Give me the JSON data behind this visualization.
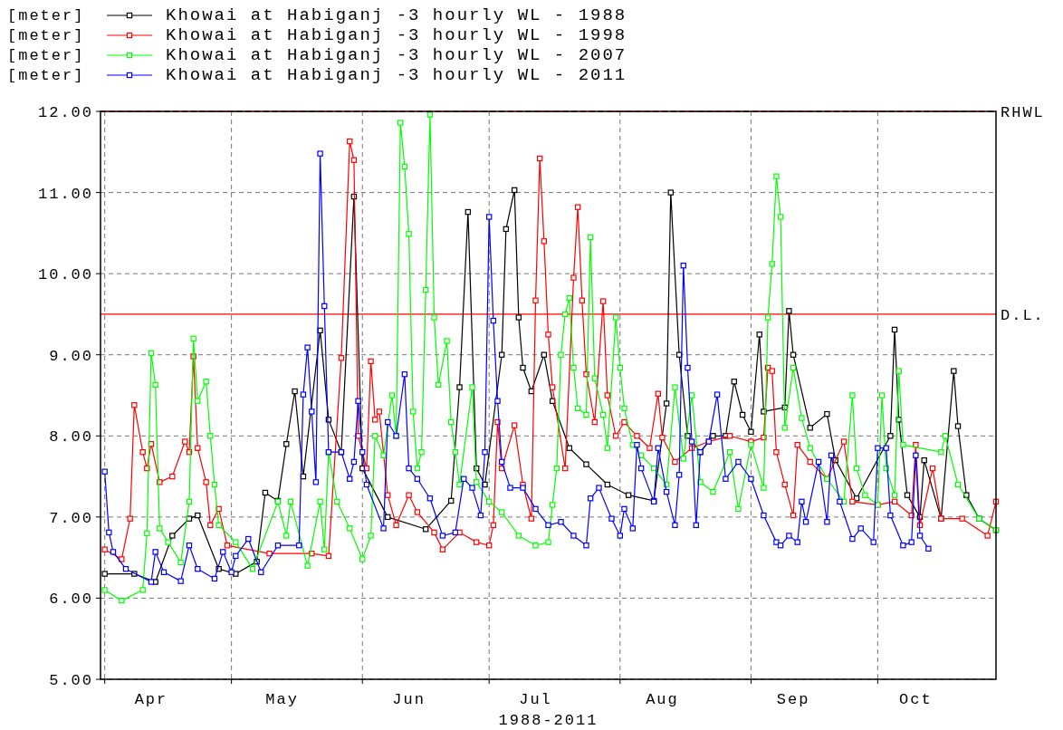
{
  "chart_data": {
    "type": "line",
    "ylabel": "[meter]",
    "xlabel": "1988-2011",
    "xlim": [
      "--03-31",
      "--10-29"
    ],
    "xticks": [
      {
        "value": "--04-01",
        "label": null
      },
      {
        "value": "--04-12",
        "label": "Apr"
      },
      {
        "value": "--05-01",
        "label": null
      },
      {
        "value": "--05-13",
        "label": "May"
      },
      {
        "value": "--06-01",
        "label": null
      },
      {
        "value": "--06-12",
        "label": "Jun"
      },
      {
        "value": "--07-01",
        "label": null
      },
      {
        "value": "--07-12",
        "label": "Jul"
      },
      {
        "value": "--08-01",
        "label": null
      },
      {
        "value": "--08-11",
        "label": "Aug"
      },
      {
        "value": "--09-01",
        "label": null
      },
      {
        "value": "--09-11",
        "label": "Sep"
      },
      {
        "value": "--10-01",
        "label": null
      },
      {
        "value": "--10-10",
        "label": "Oct"
      }
    ],
    "ylim": [
      5,
      12
    ],
    "yticks": [
      {
        "value": 5,
        "label": "5.00"
      },
      {
        "value": 6,
        "label": "6.00"
      },
      {
        "value": 7,
        "label": "7.00"
      },
      {
        "value": 8,
        "label": "8.00"
      },
      {
        "value": 9,
        "label": "9.00"
      },
      {
        "value": 10,
        "label": "10.00"
      },
      {
        "value": 11,
        "label": "11.00"
      },
      {
        "value": 12,
        "label": "12.00"
      }
    ],
    "grid": true,
    "legend": "top left",
    "marker": "square",
    "line_style": "solid",
    "ref_lines": [
      {
        "axis": "y",
        "value": 12,
        "label": "RHWL",
        "color": "#ff0000",
        "line_style": "dashed"
      },
      {
        "axis": "y",
        "value": 9.5,
        "label": "D.L.",
        "color": "#ff0000",
        "line_style": "solid"
      }
    ],
    "series": [
      {
        "name": "Khowai at Habiganj -3 hourly WL - 1988",
        "color": "#000000",
        "x": [
          "--04-01",
          "--04-08",
          "--04-13",
          "--04-17",
          "--04-21",
          "--04-23",
          "--04-28",
          "--05-02",
          "--05-07",
          "--05-09",
          "--05-12",
          "--05-14",
          "--05-16",
          "--05-18",
          "--05-22",
          "--05-24",
          "--05-27",
          "--05-30",
          "--06-01",
          "--06-07",
          "--06-16",
          "--06-22",
          "--06-24",
          "--06-26",
          "--06-28",
          "--06-30",
          "--07-04",
          "--07-05",
          "--07-07",
          "--07-08",
          "--07-09",
          "--07-11",
          "--07-14",
          "--07-16",
          "--07-20",
          "--07-24",
          "--07-29",
          "--08-03",
          "--08-09",
          "--08-12",
          "--08-13",
          "--08-15",
          "--08-17",
          "--08-20",
          "--08-23",
          "--08-26",
          "--08-28",
          "--08-30",
          "--09-01",
          "--09-03",
          "--09-04",
          "--09-09",
          "--09-10",
          "--09-11",
          "--09-15",
          "--09-19",
          "--09-21",
          "--09-26",
          "--10-04",
          "--10-05",
          "--10-06",
          "--10-08",
          "--10-11",
          "--10-12",
          "--10-16",
          "--10-19",
          "--10-20",
          "--10-22",
          "--10-25",
          "--10-29"
        ],
        "values": [
          6.3,
          6.3,
          6.2,
          6.77,
          6.98,
          7.02,
          6.36,
          6.3,
          6.45,
          7.3,
          7.2,
          7.9,
          8.55,
          7.5,
          9.3,
          8.2,
          7.8,
          10.95,
          7.6,
          7.0,
          6.85,
          7.2,
          8.6,
          10.76,
          7.6,
          7.4,
          9.0,
          10.55,
          11.03,
          9.46,
          8.84,
          8.55,
          9.0,
          8.43,
          7.85,
          7.65,
          7.4,
          7.27,
          7.2,
          8.4,
          11.0,
          9.0,
          8.0,
          7.8,
          8.0,
          8.0,
          8.67,
          8.26,
          8.05,
          9.25,
          8.3,
          8.35,
          9.54,
          9.0,
          8.1,
          8.27,
          7.7,
          7.23,
          8.0,
          9.31,
          8.2,
          7.27,
          7.0,
          7.7,
          6.98,
          8.8,
          8.12,
          7.27,
          6.98,
          6.84
        ]
      },
      {
        "name": "Khowai at Habiganj -3 hourly WL - 1998",
        "color": "#ff0000",
        "x": [
          "--04-01",
          "--04-05",
          "--04-07",
          "--04-08",
          "--04-10",
          "--04-11",
          "--04-12",
          "--04-14",
          "--04-17",
          "--04-20",
          "--04-21",
          "--04-22",
          "--04-23",
          "--04-25",
          "--04-26",
          "--04-28",
          "--04-30",
          "--05-10",
          "--05-20",
          "--05-24",
          "--05-27",
          "--05-29",
          "--05-30",
          "--05-31",
          "--06-02",
          "--06-03",
          "--06-04",
          "--06-05",
          "--06-07",
          "--06-09",
          "--06-12",
          "--06-14",
          "--06-18",
          "--06-20",
          "--06-24",
          "--06-28",
          "--07-01",
          "--07-02",
          "--07-03",
          "--07-04",
          "--07-07",
          "--07-09",
          "--07-11",
          "--07-12",
          "--07-13",
          "--07-14",
          "--07-15",
          "--07-16",
          "--07-19",
          "--07-21",
          "--07-22",
          "--07-23",
          "--07-24",
          "--07-26",
          "--07-28",
          "--07-29",
          "--07-31",
          "--08-02",
          "--08-05",
          "--08-08",
          "--08-10",
          "--08-11",
          "--08-14",
          "--08-18",
          "--08-22",
          "--08-27",
          "--09-01",
          "--09-04",
          "--09-05",
          "--09-06",
          "--09-07",
          "--09-09",
          "--09-11",
          "--09-12",
          "--09-15",
          "--09-19",
          "--09-23",
          "--09-25",
          "--10-01",
          "--10-05",
          "--10-09",
          "--10-10",
          "--10-11",
          "--10-14",
          "--10-16",
          "--10-21",
          "--10-27",
          "--10-29"
        ],
        "values": [
          6.6,
          6.48,
          6.98,
          8.38,
          7.8,
          7.6,
          7.9,
          7.43,
          7.5,
          7.93,
          7.8,
          8.98,
          7.85,
          7.43,
          6.9,
          7.1,
          6.65,
          6.55,
          6.55,
          6.52,
          8.96,
          11.63,
          11.4,
          8.0,
          7.6,
          8.92,
          8.2,
          8.3,
          7.27,
          6.9,
          7.27,
          7.06,
          6.81,
          6.6,
          6.81,
          6.69,
          6.65,
          6.9,
          8.17,
          7.6,
          8.13,
          7.4,
          6.98,
          9.67,
          11.42,
          10.4,
          9.25,
          8.6,
          7.6,
          9.95,
          10.82,
          9.67,
          8.76,
          8.17,
          9.66,
          8.5,
          8.0,
          8.17,
          8.0,
          7.85,
          8.52,
          7.98,
          7.68,
          7.85,
          7.93,
          8.0,
          7.93,
          7.98,
          8.84,
          8.8,
          7.8,
          7.4,
          7.02,
          7.89,
          7.68,
          7.47,
          7.93,
          7.19,
          7.15,
          7.19,
          7.02,
          7.89,
          6.9,
          7.6,
          6.98,
          6.98,
          6.77,
          7.19
        ]
      },
      {
        "name": "Khowai at Habiganj -3 hourly WL - 2007",
        "color": "#00ff00",
        "x": [
          "--04-01",
          "--04-05",
          "--04-10",
          "--04-11",
          "--04-12",
          "--04-13",
          "--04-14",
          "--04-16",
          "--04-19",
          "--04-21",
          "--04-22",
          "--04-23",
          "--04-25",
          "--04-26",
          "--04-27",
          "--04-28",
          "--05-02",
          "--05-06",
          "--05-12",
          "--05-14",
          "--05-15",
          "--05-19",
          "--05-22",
          "--05-23",
          "--05-24",
          "--05-26",
          "--05-29",
          "--06-01",
          "--06-03",
          "--06-04",
          "--06-06",
          "--06-08",
          "--06-09",
          "--06-10",
          "--06-11",
          "--06-12",
          "--06-13",
          "--06-14",
          "--06-15",
          "--06-16",
          "--06-17",
          "--06-18",
          "--06-19",
          "--06-21",
          "--06-22",
          "--06-23",
          "--06-24",
          "--06-27",
          "--06-28",
          "--07-01",
          "--07-04",
          "--07-08",
          "--07-12",
          "--07-15",
          "--07-16",
          "--07-17",
          "--07-18",
          "--07-19",
          "--07-20",
          "--07-21",
          "--07-22",
          "--07-24",
          "--07-25",
          "--07-26",
          "--07-28",
          "--07-29",
          "--07-31",
          "--08-01",
          "--08-02",
          "--08-04",
          "--08-06",
          "--08-09",
          "--08-12",
          "--08-14",
          "--08-16",
          "--08-18",
          "--08-20",
          "--08-23",
          "--08-27",
          "--08-29",
          "--09-01",
          "--09-04",
          "--09-05",
          "--09-06",
          "--09-07",
          "--09-08",
          "--09-09",
          "--09-11",
          "--09-13",
          "--09-15",
          "--09-19",
          "--09-23",
          "--09-25",
          "--09-26",
          "--09-28",
          "--10-01",
          "--10-02",
          "--10-03",
          "--10-05",
          "--10-06",
          "--10-07",
          "--10-16",
          "--10-17",
          "--10-20",
          "--10-25",
          "--10-29"
        ],
        "values": [
          6.1,
          5.97,
          6.1,
          6.8,
          9.02,
          8.63,
          6.86,
          6.69,
          6.44,
          7.19,
          9.2,
          8.43,
          8.67,
          8.0,
          7.4,
          6.9,
          6.69,
          6.36,
          7.19,
          6.77,
          7.19,
          6.4,
          7.19,
          6.6,
          7.8,
          7.19,
          6.86,
          6.48,
          6.77,
          8.0,
          7.76,
          8.5,
          8.0,
          11.86,
          11.32,
          10.49,
          8.3,
          7.6,
          7.8,
          9.8,
          11.96,
          9.46,
          8.63,
          9.17,
          8.17,
          7.8,
          7.4,
          8.6,
          7.43,
          7.19,
          7.06,
          6.77,
          6.65,
          6.69,
          7.15,
          7.6,
          9.0,
          9.5,
          9.7,
          8.84,
          8.34,
          8.26,
          10.45,
          8.71,
          8.26,
          7.85,
          9.46,
          8.84,
          8.34,
          7.89,
          7.76,
          7.6,
          7.4,
          8.6,
          7.72,
          8.5,
          7.43,
          7.31,
          7.8,
          7.1,
          7.89,
          7.36,
          9.46,
          10.12,
          11.2,
          10.7,
          8.1,
          8.84,
          8.22,
          7.85,
          7.47,
          7.19,
          8.5,
          7.6,
          7.27,
          7.15,
          8.5,
          7.6,
          7.27,
          8.8,
          7.89,
          7.8,
          8.0,
          7.4,
          6.98,
          6.84
        ]
      },
      {
        "name": "Khowai at Habiganj -3 hourly WL - 2011",
        "color": "#0000ff",
        "x": [
          "--04-01",
          "--04-02",
          "--04-03",
          "--04-06",
          "--04-12",
          "--04-13",
          "--04-15",
          "--04-19",
          "--04-21",
          "--04-23",
          "--04-27",
          "--04-29",
          "--05-01",
          "--05-02",
          "--05-05",
          "--05-08",
          "--05-12",
          "--05-17",
          "--05-18",
          "--05-19",
          "--05-20",
          "--05-21",
          "--05-22",
          "--05-23",
          "--05-24",
          "--05-27",
          "--05-29",
          "--05-30",
          "--05-31",
          "--06-01",
          "--06-02",
          "--06-06",
          "--06-07",
          "--06-09",
          "--06-11",
          "--06-12",
          "--06-14",
          "--06-17",
          "--06-20",
          "--06-23",
          "--06-25",
          "--06-27",
          "--06-29",
          "--06-30",
          "--07-01",
          "--07-02",
          "--07-03",
          "--07-04",
          "--07-06",
          "--07-09",
          "--07-12",
          "--07-15",
          "--07-18",
          "--07-21",
          "--07-24",
          "--07-25",
          "--07-27",
          "--07-30",
          "--08-01",
          "--08-02",
          "--08-04",
          "--08-05",
          "--08-06",
          "--08-09",
          "--08-10",
          "--08-12",
          "--08-14",
          "--08-15",
          "--08-16",
          "--08-17",
          "--08-18",
          "--08-19",
          "--08-20",
          "--08-22",
          "--08-24",
          "--08-26",
          "--08-29",
          "--09-01",
          "--09-04",
          "--09-07",
          "--09-08",
          "--09-10",
          "--09-12",
          "--09-13",
          "--09-14",
          "--09-17",
          "--09-19",
          "--09-20",
          "--09-22",
          "--09-25",
          "--09-27",
          "--09-30",
          "--10-01",
          "--10-03",
          "--10-04",
          "--10-07",
          "--10-09",
          "--10-10",
          "--10-11",
          "--10-13"
        ],
        "values": [
          7.56,
          6.81,
          6.57,
          6.36,
          6.2,
          6.57,
          6.32,
          6.21,
          6.65,
          6.36,
          6.24,
          6.57,
          6.32,
          6.52,
          6.73,
          6.32,
          6.65,
          6.65,
          8.51,
          9.09,
          8.3,
          7.43,
          11.48,
          9.6,
          7.8,
          7.8,
          7.47,
          7.68,
          8.43,
          7.8,
          7.4,
          6.86,
          8.17,
          8.0,
          8.76,
          7.6,
          7.47,
          7.23,
          6.77,
          6.81,
          7.47,
          7.36,
          7.02,
          7.8,
          10.7,
          9.42,
          8.43,
          7.68,
          7.36,
          7.36,
          7.1,
          6.9,
          6.94,
          6.77,
          6.65,
          7.23,
          7.36,
          6.98,
          6.77,
          7.1,
          6.86,
          7.89,
          7.6,
          7.19,
          7.85,
          7.31,
          6.9,
          7.52,
          10.1,
          8.84,
          7.93,
          6.9,
          7.8,
          7.93,
          8.51,
          7.47,
          7.68,
          7.47,
          7.02,
          6.69,
          6.65,
          6.77,
          6.69,
          7.19,
          6.94,
          7.68,
          6.94,
          7.76,
          7.19,
          6.73,
          6.86,
          6.69,
          7.85,
          7.85,
          7.02,
          6.65,
          6.69,
          7.76,
          6.77,
          6.61
        ]
      }
    ]
  }
}
